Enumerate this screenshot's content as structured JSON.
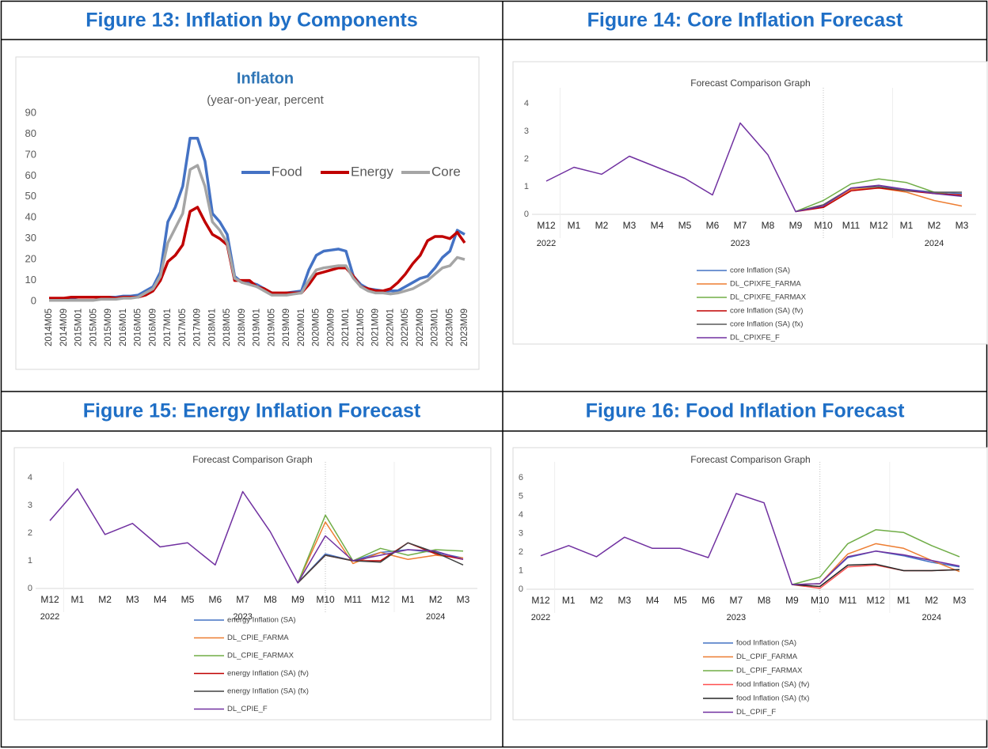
{
  "figures": [
    {
      "heading": "Figure 13: Inflation by Components"
    },
    {
      "heading": "Figure 14: Core Inflation Forecast"
    },
    {
      "heading": "Figure 15: Energy Inflation Forecast"
    },
    {
      "heading": "Figure 16: Food Inflation Forecast"
    }
  ],
  "chart_data": [
    {
      "type": "line",
      "title": "Inflaton",
      "subtitle": "(year-on-year, percent",
      "categories": [
        "2014M05",
        null,
        "2014M09",
        null,
        "2015M01",
        null,
        "2015M05",
        null,
        "2015M09",
        null,
        "2016M01",
        null,
        "2016M05",
        null,
        "2016M09",
        null,
        "2017M01",
        null,
        "2017M05",
        null,
        "2017M09",
        null,
        "2018M01",
        null,
        "2018M05",
        null,
        "2018M09",
        null,
        "2019M01",
        null,
        "2019M05",
        null,
        "2019M09",
        null,
        "2020M01",
        null,
        "2020M05",
        null,
        "2020M09",
        null,
        "2021M01",
        null,
        "2021M05",
        null,
        "2021M09",
        null,
        "2022M01",
        null,
        "2022M05",
        null,
        "2022M09",
        null,
        "2023M01",
        null,
        "2023M05",
        null,
        "2023M09"
      ],
      "series": [
        {
          "name": "Food",
          "color": "#4472c4",
          "values": [
            1,
            1,
            1,
            1.5,
            2,
            2,
            2,
            2,
            2,
            2,
            2.5,
            2.5,
            3,
            5,
            7,
            14,
            38,
            45,
            55,
            78,
            78,
            67,
            42,
            38,
            32,
            12,
            9,
            9,
            8,
            6,
            4,
            3.5,
            4,
            4.5,
            5,
            15,
            22,
            24,
            24.5,
            25,
            24,
            12,
            8,
            6,
            5.5,
            5,
            5,
            5,
            7,
            9,
            11,
            12,
            16,
            21,
            24,
            34,
            32
          ]
        },
        {
          "name": "Energy",
          "color": "#c00000",
          "values": [
            1.5,
            1.5,
            1.5,
            2,
            2,
            2,
            2,
            2,
            2,
            1.5,
            2,
            2,
            2,
            3,
            5,
            10,
            19,
            22,
            27,
            43,
            45,
            38,
            32,
            30,
            27,
            10,
            10,
            10,
            7,
            6,
            4,
            4,
            4,
            4,
            4,
            8,
            13,
            14,
            15,
            16,
            16,
            12,
            7,
            6,
            5,
            5,
            6,
            9,
            13,
            18,
            22,
            29,
            31,
            31,
            30,
            33,
            28
          ]
        },
        {
          "name": "Core",
          "color": "#a5a5a5",
          "values": [
            0.5,
            0.5,
            0.5,
            0.5,
            0.5,
            0.5,
            0.5,
            1,
            1,
            1,
            1.5,
            1.5,
            2,
            4,
            6,
            12,
            28,
            35,
            42,
            63,
            65,
            55,
            38,
            34,
            28,
            11,
            9,
            8,
            7,
            5,
            3,
            3,
            3,
            3.5,
            4,
            10,
            15,
            16,
            16.5,
            17,
            17,
            11,
            7,
            5,
            4,
            4,
            3.5,
            4,
            5,
            6,
            8,
            10,
            13,
            16,
            17,
            21,
            20
          ]
        }
      ],
      "ylim": [
        0,
        90
      ],
      "yticks": [
        0,
        10,
        20,
        30,
        40,
        50,
        60,
        70,
        80,
        90
      ],
      "legend": "right"
    },
    {
      "type": "line",
      "title": "Forecast Comparison Graph",
      "categories": [
        "M12",
        "M1",
        "M2",
        "M3",
        "M4",
        "M5",
        "M6",
        "M7",
        "M8",
        "M9",
        "M10",
        "M11",
        "M12",
        "M1",
        "M2",
        "M3"
      ],
      "year_labels": [
        "2022",
        null,
        null,
        null,
        null,
        null,
        null,
        "2023",
        null,
        null,
        null,
        null,
        null,
        null,
        "2024",
        null
      ],
      "series": [
        {
          "name": "core Inflation (SA)",
          "color": "#4472c4",
          "values": [
            null,
            null,
            null,
            null,
            null,
            null,
            null,
            null,
            null,
            0.1,
            0.3,
            0.95,
            1.0,
            0.9,
            0.8,
            0.75
          ]
        },
        {
          "name": "DL_CPIXFE_FARMA",
          "color": "#ed7d31",
          "values": [
            null,
            null,
            null,
            null,
            null,
            null,
            null,
            null,
            null,
            0.1,
            0.3,
            0.9,
            0.95,
            0.8,
            0.5,
            0.3
          ]
        },
        {
          "name": "DL_CPIXFE_FARMAX",
          "color": "#70ad47",
          "values": [
            null,
            null,
            null,
            null,
            null,
            null,
            null,
            null,
            null,
            0.1,
            0.5,
            1.1,
            1.28,
            1.15,
            0.8,
            0.65
          ]
        },
        {
          "name": "core Inflation (SA) (fv)",
          "color": "#c00000",
          "values": [
            null,
            null,
            null,
            null,
            null,
            null,
            null,
            null,
            null,
            0.1,
            0.25,
            0.85,
            0.95,
            0.85,
            0.75,
            0.7
          ]
        },
        {
          "name": "core Inflation (SA) (fx)",
          "color": "#595959",
          "values": [
            null,
            null,
            null,
            null,
            null,
            null,
            null,
            null,
            null,
            0.1,
            0.35,
            0.95,
            1.0,
            0.85,
            0.8,
            0.8
          ]
        },
        {
          "name": "DL_CPIXFE_F",
          "color": "#7030a0",
          "values": [
            1.2,
            1.7,
            1.45,
            2.1,
            1.7,
            1.3,
            0.7,
            3.3,
            2.15,
            0.1,
            0.3,
            0.95,
            1.05,
            0.9,
            0.75,
            0.65
          ]
        }
      ],
      "ylim": [
        0,
        4
      ],
      "yticks": [
        0,
        1,
        2,
        3,
        4
      ],
      "legend": "bottom"
    },
    {
      "type": "line",
      "title": "Forecast Comparison Graph",
      "categories": [
        "M12",
        "M1",
        "M2",
        "M3",
        "M4",
        "M5",
        "M6",
        "M7",
        "M8",
        "M9",
        "M10",
        "M11",
        "M12",
        "M1",
        "M2",
        "M3"
      ],
      "year_labels": [
        "2022",
        null,
        null,
        null,
        null,
        null,
        null,
        "2023",
        null,
        null,
        null,
        null,
        null,
        null,
        "2024",
        null
      ],
      "series": [
        {
          "name": "energy Inflation (SA)",
          "color": "#4472c4",
          "values": [
            null,
            null,
            null,
            null,
            null,
            null,
            null,
            null,
            null,
            0.2,
            1.25,
            1.0,
            1.3,
            1.4,
            1.3,
            1.1
          ]
        },
        {
          "name": "DL_CPIE_FARMA",
          "color": "#ed7d31",
          "values": [
            null,
            null,
            null,
            null,
            null,
            null,
            null,
            null,
            null,
            0.2,
            2.4,
            0.9,
            1.3,
            1.05,
            1.2,
            1.1
          ]
        },
        {
          "name": "DL_CPIE_FARMAX",
          "color": "#70ad47",
          "values": [
            null,
            null,
            null,
            null,
            null,
            null,
            null,
            null,
            null,
            0.2,
            2.65,
            1.0,
            1.45,
            1.2,
            1.4,
            1.35
          ]
        },
        {
          "name": "energy Inflation (SA) (fv)",
          "color": "#c00000",
          "values": [
            null,
            null,
            null,
            null,
            null,
            null,
            null,
            null,
            null,
            0.2,
            1.2,
            1.0,
            1.0,
            1.65,
            1.25,
            1.05
          ]
        },
        {
          "name": "energy Inflation (SA) (fx)",
          "color": "#404040",
          "values": [
            null,
            null,
            null,
            null,
            null,
            null,
            null,
            null,
            null,
            0.2,
            1.2,
            1.0,
            0.95,
            1.65,
            1.3,
            0.85
          ]
        },
        {
          "name": "DL_CPIE_F",
          "color": "#7030a0",
          "values": [
            2.45,
            3.6,
            1.95,
            2.35,
            1.5,
            1.65,
            0.85,
            3.5,
            2.05,
            0.2,
            1.9,
            1.0,
            1.2,
            1.4,
            1.35,
            1.05
          ]
        }
      ],
      "ylim": [
        0,
        4
      ],
      "yticks": [
        0,
        1,
        2,
        3,
        4
      ],
      "legend": "bottom"
    },
    {
      "type": "line",
      "title": "Forecast Comparison Graph",
      "categories": [
        "M12",
        "M1",
        "M2",
        "M3",
        "M4",
        "M5",
        "M6",
        "M7",
        "M8",
        "M9",
        "M10",
        "M11",
        "M12",
        "M1",
        "M2",
        "M3"
      ],
      "year_labels": [
        "2022",
        null,
        null,
        null,
        null,
        null,
        null,
        "2023",
        null,
        null,
        null,
        null,
        null,
        null,
        "2024",
        null
      ],
      "series": [
        {
          "name": "food Inflation (SA)",
          "color": "#4472c4",
          "values": [
            null,
            null,
            null,
            null,
            null,
            null,
            null,
            null,
            null,
            0.25,
            0.3,
            1.7,
            2.05,
            1.8,
            1.45,
            1.2
          ]
        },
        {
          "name": "DL_CPIF_FARMA",
          "color": "#ed7d31",
          "values": [
            null,
            null,
            null,
            null,
            null,
            null,
            null,
            null,
            null,
            0.25,
            0.3,
            1.9,
            2.45,
            2.2,
            1.55,
            0.95
          ]
        },
        {
          "name": "DL_CPIF_FARMAX",
          "color": "#70ad47",
          "values": [
            null,
            null,
            null,
            null,
            null,
            null,
            null,
            null,
            null,
            0.25,
            0.65,
            2.45,
            3.2,
            3.05,
            2.35,
            1.75
          ]
        },
        {
          "name": "food Inflation (SA) (fv)",
          "color": "#ff5050",
          "values": [
            null,
            null,
            null,
            null,
            null,
            null,
            null,
            null,
            null,
            0.25,
            0.05,
            1.2,
            1.3,
            1.0,
            1.0,
            1.05
          ]
        },
        {
          "name": "food Inflation (SA) (fx)",
          "color": "#262626",
          "values": [
            null,
            null,
            null,
            null,
            null,
            null,
            null,
            null,
            null,
            0.25,
            0.15,
            1.3,
            1.35,
            1.0,
            1.0,
            1.05
          ]
        },
        {
          "name": "DL_CPIF_F",
          "color": "#7030a0",
          "values": [
            1.8,
            2.35,
            1.75,
            2.8,
            2.2,
            2.2,
            1.7,
            5.15,
            4.65,
            0.25,
            0.3,
            1.75,
            2.05,
            1.85,
            1.55,
            1.25
          ]
        }
      ],
      "ylim": [
        0,
        6
      ],
      "yticks": [
        0,
        1,
        2,
        3,
        4,
        5,
        6
      ],
      "legend": "bottom"
    }
  ]
}
